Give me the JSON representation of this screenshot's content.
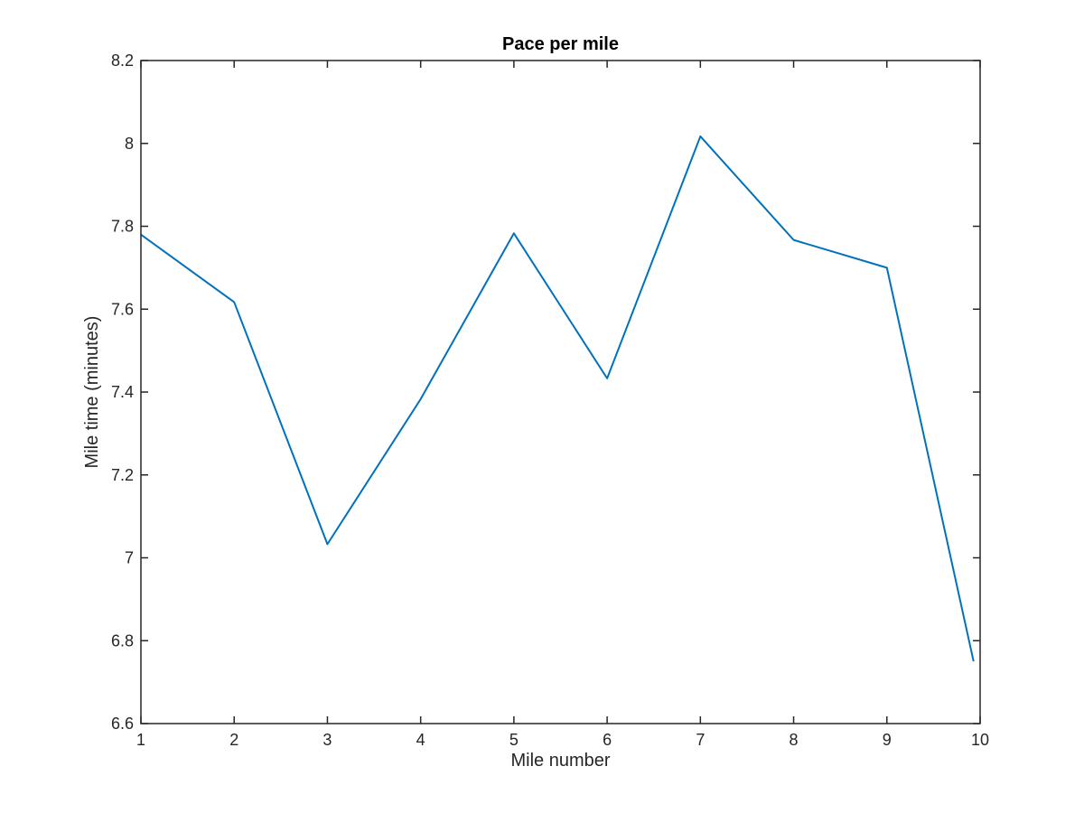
{
  "chart_data": {
    "type": "line",
    "title": "Pace per mile",
    "xlabel": "Mile number",
    "ylabel": "Mile time (minutes)",
    "xlim": [
      1,
      10
    ],
    "ylim": [
      6.6,
      8.2
    ],
    "x_ticks": [
      1,
      2,
      3,
      4,
      5,
      6,
      7,
      8,
      9,
      10
    ],
    "x_tick_labels": [
      "1",
      "2",
      "3",
      "4",
      "5",
      "6",
      "7",
      "8",
      "9",
      "10"
    ],
    "y_ticks": [
      6.6,
      6.8,
      7.0,
      7.2,
      7.4,
      7.6,
      7.8,
      8.0,
      8.2
    ],
    "y_tick_labels": [
      "6.6",
      "6.8",
      "7",
      "7.2",
      "7.4",
      "7.6",
      "7.8",
      "8",
      "8.2"
    ],
    "grid": false,
    "series": [
      {
        "color": "#0072BD",
        "x": [
          1,
          2,
          3,
          4,
          5,
          6,
          7,
          8,
          9,
          9.93
        ],
        "y": [
          7.78,
          7.617,
          7.033,
          7.383,
          7.783,
          7.433,
          8.017,
          7.767,
          7.7,
          6.75
        ]
      }
    ],
    "axes_color": "#262626"
  }
}
